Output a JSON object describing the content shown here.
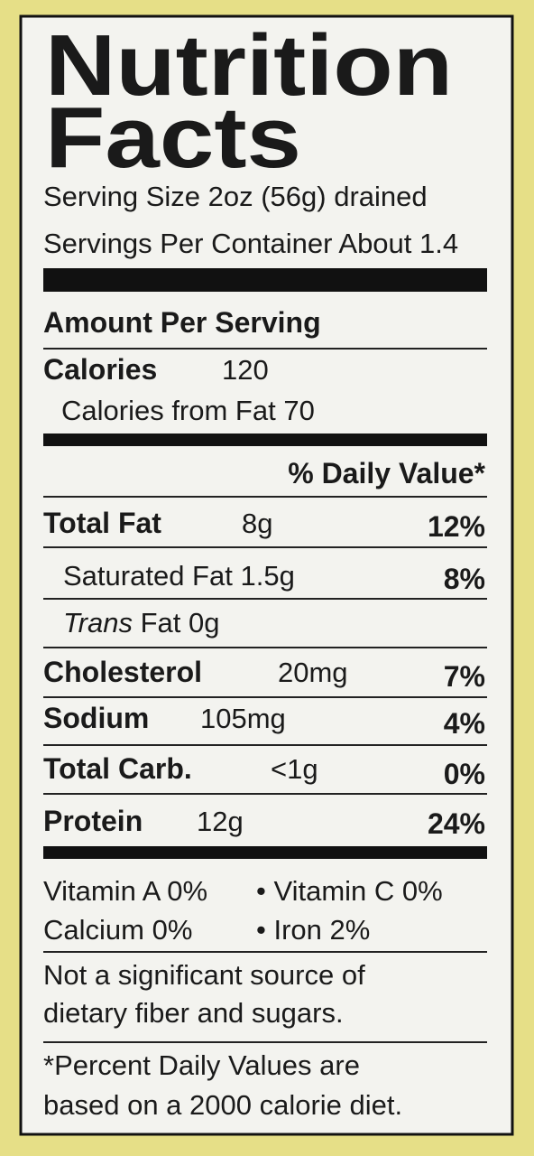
{
  "title": [
    "Nutrition",
    "Facts"
  ],
  "serving_size": "Serving Size 2oz (56g) drained",
  "servings_per_container": "Servings Per Container About 1.4",
  "amount_per_serving": "Amount Per Serving",
  "calories": {
    "label": "Calories",
    "value": "120"
  },
  "calories_from_fat": "Calories from Fat 70",
  "daily_value_header": "% Daily Value*",
  "nutrients": [
    {
      "name": "Total Fat",
      "amount": "8g",
      "dv": "12%"
    },
    {
      "name": "Saturated Fat",
      "amount": "1.5g",
      "dv": "8%"
    },
    {
      "name_italic": "Trans",
      "name": "Fat",
      "amount": "0g"
    },
    {
      "name": "Cholesterol",
      "amount": "20mg",
      "dv": "7%"
    },
    {
      "name": "Sodium",
      "amount": "105mg",
      "dv": "4%"
    },
    {
      "name": "Total Carb.",
      "amount": "<1g",
      "dv": "0%"
    },
    {
      "name": "Protein",
      "amount": "12g",
      "dv": "24%"
    }
  ],
  "vitamins": [
    "Vitamin A 0%",
    "• Vitamin C 0%",
    "Calcium 0%",
    "• Iron 2%"
  ],
  "note": [
    "Not a significant source of",
    "dietary fiber and sugars."
  ],
  "footnote": [
    "*Percent Daily Values are",
    "based on a 2000 calorie diet."
  ]
}
